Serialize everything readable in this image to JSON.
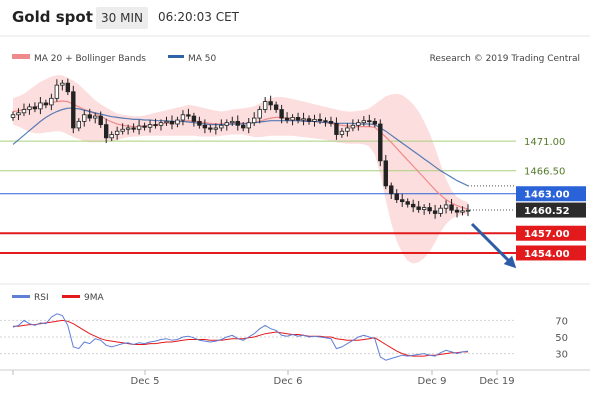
{
  "header": {
    "symbol": "Gold spot",
    "timeframe": "30 MIN",
    "time": "06:20:03 CET"
  },
  "legend": {
    "ma20": "MA 20 + Bollinger Bands",
    "ma50": "MA 50",
    "credit": "Research © 2019 Trading Central",
    "rsi": "RSI",
    "ma9": "9MA"
  },
  "colors": {
    "candle": "#222222",
    "ma20": "#ef8a8a",
    "bollinger": "#fbd3d3",
    "ma50": "#2f62a8",
    "support": "#e31a1c",
    "pivot": "#2a62d8",
    "green_level": "#a8cf7d",
    "rsi": "#5f7fd6",
    "ma9": "#e31a1c"
  },
  "chart_data": [
    {
      "type": "line",
      "title": "",
      "xlabel": "",
      "ylabel": "",
      "x_ticks": [
        "Dec 5",
        "Dec 6",
        "Dec 9",
        "Dec 19"
      ],
      "ylim": [
        1450.5,
        1481.5
      ],
      "levels": [
        {
          "name": "resistance-2",
          "value": 1471.0,
          "label": "1471.00",
          "color": "#a8cf7d",
          "style": "line"
        },
        {
          "name": "resistance-1",
          "value": 1466.5,
          "label": "1466.50",
          "color": "#a8cf7d",
          "style": "line"
        },
        {
          "name": "pivot",
          "value": 1463.0,
          "label": "1463.00",
          "color": "#2a62d8",
          "style": "box"
        },
        {
          "name": "last-price",
          "value": 1460.52,
          "label": "1460.52",
          "color": "#333333",
          "style": "box"
        },
        {
          "name": "support-1",
          "value": 1457.0,
          "label": "1457.00",
          "color": "#e31a1c",
          "style": "box"
        },
        {
          "name": "support-2",
          "value": 1454.0,
          "label": "1454.00",
          "color": "#e31a1c",
          "style": "box"
        }
      ],
      "price": [
        1475.0,
        1475.3,
        1475.8,
        1476.2,
        1475.9,
        1476.8,
        1476.5,
        1477.5,
        1479.5,
        1479.8,
        1478.5,
        1473.0,
        1474.0,
        1475.0,
        1474.5,
        1474.8,
        1473.5,
        1471.5,
        1472.0,
        1472.5,
        1472.8,
        1473.0,
        1472.8,
        1473.3,
        1473.1,
        1473.5,
        1473.4,
        1473.8,
        1474.0,
        1473.6,
        1474.2,
        1475.0,
        1474.8,
        1474.0,
        1473.4,
        1473.0,
        1472.8,
        1473.0,
        1473.4,
        1473.8,
        1474.0,
        1473.4,
        1473.0,
        1473.8,
        1474.5,
        1475.8,
        1477.0,
        1476.5,
        1475.8,
        1474.5,
        1474.2,
        1474.6,
        1474.2,
        1474.4,
        1474.0,
        1474.3,
        1474.1,
        1474.0,
        1473.7,
        1472.0,
        1472.5,
        1473.0,
        1473.4,
        1473.8,
        1474.1,
        1474.0,
        1473.6,
        1468.0,
        1464.2,
        1463.0,
        1462.1,
        1461.8,
        1461.4,
        1461.0,
        1460.6,
        1460.9,
        1460.4,
        1460.0,
        1460.8,
        1461.3,
        1460.5,
        1460.2,
        1460.4,
        1460.5
      ],
      "ma20": [
        1475.5,
        1475.6,
        1475.8,
        1476.0,
        1476.2,
        1476.4,
        1476.6,
        1476.8,
        1477.0,
        1477.1,
        1477.0,
        1476.6,
        1476.2,
        1475.8,
        1475.5,
        1475.2,
        1474.8,
        1474.3,
        1473.9,
        1473.6,
        1473.4,
        1473.3,
        1473.2,
        1473.2,
        1473.3,
        1473.4,
        1473.5,
        1473.6,
        1473.7,
        1473.8,
        1473.9,
        1474.0,
        1474.1,
        1474.0,
        1473.9,
        1473.8,
        1473.7,
        1473.6,
        1473.6,
        1473.7,
        1473.8,
        1473.8,
        1473.7,
        1473.7,
        1473.8,
        1474.0,
        1474.3,
        1474.5,
        1474.6,
        1474.6,
        1474.5,
        1474.4,
        1474.3,
        1474.2,
        1474.1,
        1474.0,
        1473.9,
        1473.8,
        1473.7,
        1473.5,
        1473.4,
        1473.3,
        1473.2,
        1473.2,
        1473.2,
        1473.2,
        1473.1,
        1472.4,
        1471.6,
        1470.8,
        1469.9,
        1469.0,
        1468.1,
        1467.2,
        1466.3,
        1465.4,
        1464.5,
        1463.6,
        1462.8,
        1462.1,
        1461.6,
        1461.2,
        1460.9,
        1460.7
      ],
      "ma50": [
        1470.5,
        1471.2,
        1471.9,
        1472.6,
        1473.3,
        1474.0,
        1474.6,
        1475.1,
        1475.5,
        1475.8,
        1476.0,
        1476.0,
        1475.9,
        1475.7,
        1475.5,
        1475.3,
        1475.1,
        1474.9,
        1474.7,
        1474.6,
        1474.5,
        1474.4,
        1474.3,
        1474.3,
        1474.2,
        1474.2,
        1474.1,
        1474.1,
        1474.1,
        1474.0,
        1474.0,
        1474.0,
        1473.9,
        1473.8,
        1473.7,
        1473.6,
        1473.5,
        1473.5,
        1473.5,
        1473.5,
        1473.6,
        1473.6,
        1473.6,
        1473.7,
        1473.8,
        1473.9,
        1474.0,
        1474.1,
        1474.1,
        1474.1,
        1474.1,
        1474.1,
        1474.1,
        1474.0,
        1474.0,
        1474.0,
        1473.9,
        1473.8,
        1473.8,
        1473.7,
        1473.7,
        1473.7,
        1473.7,
        1473.6,
        1473.6,
        1473.6,
        1473.5,
        1473.0,
        1472.5,
        1471.9,
        1471.3,
        1470.7,
        1470.1,
        1469.5,
        1468.9,
        1468.3,
        1467.7,
        1467.1,
        1466.5,
        1466.0,
        1465.5,
        1465.0,
        1464.6,
        1464.2
      ],
      "boll_upper": [
        1477.5,
        1477.8,
        1478.2,
        1478.8,
        1479.4,
        1480.0,
        1480.4,
        1480.8,
        1481.0,
        1481.0,
        1480.6,
        1480.2,
        1479.6,
        1478.8,
        1478.0,
        1477.2,
        1476.6,
        1476.1,
        1475.6,
        1475.2,
        1475.0,
        1474.9,
        1474.8,
        1474.8,
        1474.9,
        1475.1,
        1475.3,
        1475.5,
        1475.7,
        1475.9,
        1476.1,
        1476.3,
        1476.5,
        1476.4,
        1476.2,
        1476.0,
        1475.8,
        1475.6,
        1475.5,
        1475.6,
        1475.8,
        1475.9,
        1476.0,
        1476.1,
        1476.3,
        1476.7,
        1477.2,
        1477.5,
        1477.7,
        1477.7,
        1477.6,
        1477.4,
        1477.2,
        1477.0,
        1476.8,
        1476.6,
        1476.4,
        1476.2,
        1476.0,
        1475.8,
        1475.6,
        1475.5,
        1475.5,
        1475.6,
        1475.7,
        1476.0,
        1476.6,
        1477.2,
        1477.8,
        1478.1,
        1478.2,
        1478.0,
        1477.4,
        1476.6,
        1475.5,
        1474.0,
        1472.2,
        1470.0,
        1467.5,
        1465.2,
        1463.5,
        1462.5,
        1462.0,
        1461.7
      ],
      "boll_lower": [
        1473.5,
        1473.2,
        1472.8,
        1472.4,
        1472.2,
        1472.2,
        1472.3,
        1472.4,
        1472.5,
        1472.4,
        1472.0,
        1471.6,
        1471.3,
        1471.0,
        1470.8,
        1470.8,
        1470.8,
        1470.9,
        1471.0,
        1471.2,
        1471.4,
        1471.6,
        1471.7,
        1471.7,
        1471.8,
        1471.8,
        1471.8,
        1471.8,
        1471.8,
        1471.8,
        1471.8,
        1471.8,
        1471.8,
        1471.8,
        1471.7,
        1471.7,
        1471.7,
        1471.7,
        1471.8,
        1471.9,
        1472.0,
        1472.0,
        1472.0,
        1471.8,
        1471.6,
        1471.6,
        1471.7,
        1471.8,
        1471.8,
        1471.8,
        1471.8,
        1471.8,
        1471.7,
        1471.6,
        1471.5,
        1471.4,
        1471.3,
        1471.2,
        1471.0,
        1470.8,
        1470.7,
        1470.6,
        1470.6,
        1470.6,
        1470.5,
        1470.2,
        1469.0,
        1466.0,
        1462.0,
        1458.5,
        1455.8,
        1454.0,
        1452.8,
        1452.4,
        1452.6,
        1453.2,
        1454.2,
        1455.6,
        1457.2,
        1458.4,
        1459.2,
        1459.6,
        1459.8,
        1459.9
      ]
    },
    {
      "type": "line",
      "title": "",
      "xlabel": "",
      "ylabel": "",
      "ylim": [
        15,
        85
      ],
      "y_ticks": [
        70,
        50,
        30
      ],
      "series": [
        {
          "name": "RSI",
          "values": [
            62,
            64,
            70,
            66,
            64,
            67,
            66,
            74,
            78,
            76,
            64,
            38,
            36,
            44,
            42,
            48,
            46,
            40,
            38,
            40,
            42,
            43,
            41,
            43,
            42,
            44,
            45,
            47,
            48,
            46,
            47,
            50,
            51,
            49,
            46,
            45,
            44,
            45,
            47,
            50,
            52,
            48,
            46,
            50,
            54,
            60,
            64,
            60,
            58,
            52,
            51,
            53,
            51,
            52,
            50,
            51,
            50,
            49,
            48,
            36,
            38,
            42,
            46,
            50,
            52,
            50,
            48,
            26,
            22,
            24,
            26,
            28,
            27,
            28,
            29,
            30,
            28,
            27,
            31,
            34,
            32,
            30,
            32,
            33
          ]
        },
        {
          "name": "9MA",
          "values": [
            63,
            63,
            64,
            65,
            65,
            66,
            67,
            68,
            69,
            70,
            69,
            66,
            62,
            58,
            54,
            51,
            48,
            46,
            45,
            44,
            43,
            42,
            41,
            41,
            41,
            42,
            42,
            43,
            44,
            44,
            45,
            46,
            47,
            47,
            47,
            47,
            46,
            46,
            46,
            47,
            48,
            48,
            48,
            49,
            50,
            52,
            54,
            55,
            56,
            55,
            54,
            53,
            53,
            52,
            51,
            51,
            51,
            50,
            50,
            48,
            47,
            46,
            46,
            46,
            47,
            48,
            49,
            45,
            41,
            37,
            33,
            30,
            28,
            27,
            27,
            27,
            28,
            28,
            29,
            30,
            31,
            31,
            32,
            32
          ]
        }
      ]
    }
  ]
}
